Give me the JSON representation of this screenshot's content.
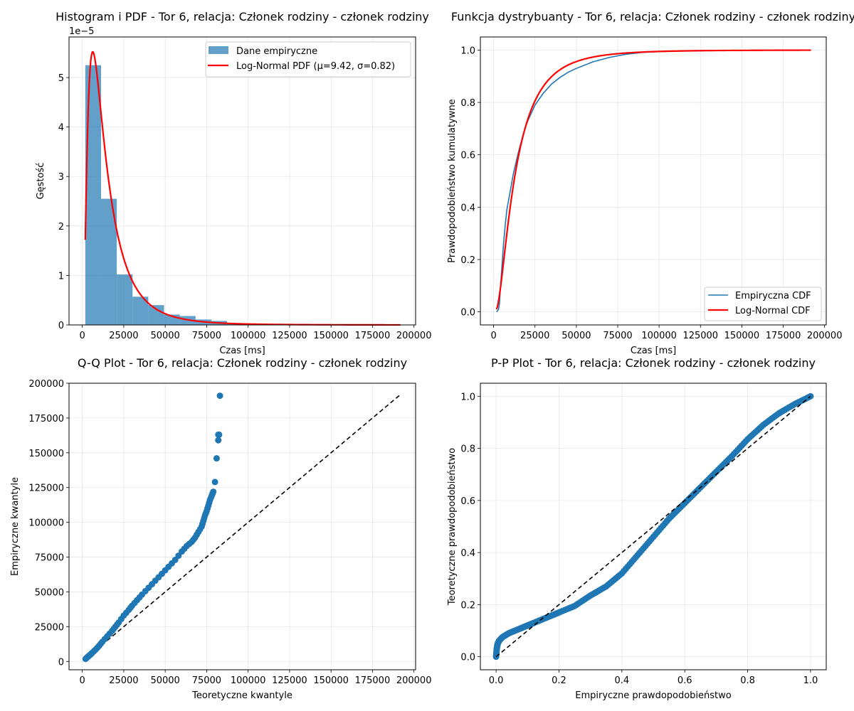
{
  "chart_data": [
    {
      "type": "bar",
      "subtype": "histogram_with_pdf",
      "title": "Histogram i PDF - Tor 6, relacja: Członek rodziny - członek rodziny",
      "xlabel": "Czas [ms]",
      "ylabel": "Gęstość",
      "y_offset_text": "1e−5",
      "xlim": [
        -8000,
        201000
      ],
      "ylim": [
        0,
        5.82
      ],
      "grid": true,
      "legend_position": "upper right",
      "xticks": [
        0,
        25000,
        50000,
        75000,
        100000,
        125000,
        150000,
        175000,
        200000
      ],
      "xtick_labels": [
        "0",
        "25000",
        "50000",
        "75000",
        "100000",
        "125000",
        "150000",
        "175000",
        "200000"
      ],
      "yticks": [
        0,
        1,
        2,
        3,
        4,
        5
      ],
      "ytick_labels": [
        "0",
        "1",
        "2",
        "3",
        "4",
        "5"
      ],
      "bar_color": "#1f77b4",
      "bar_alpha": 0.7,
      "histogram": {
        "name": "Dane empiryczne",
        "bin_edges": [
          1800,
          11300,
          20800,
          30300,
          39800,
          49300,
          58800,
          68300,
          77800,
          87300,
          96800,
          106300,
          115800,
          125300,
          134800,
          144300,
          153800,
          163300,
          172800,
          182300,
          191800
        ],
        "values": [
          5.25,
          2.55,
          1.02,
          0.57,
          0.4,
          0.21,
          0.18,
          0.11,
          0.08,
          0.03,
          0.02,
          0.015,
          0.01,
          0.008,
          0.004,
          0.004,
          0.003,
          0.002,
          0.001,
          0.002
        ]
      },
      "pdf_line": {
        "name": "Log-Normal PDF (μ=9.42, σ=0.82)",
        "color": "#ff0000",
        "mu": 9.42,
        "sigma": 0.82,
        "x_range": [
          1800,
          191800
        ]
      }
    },
    {
      "type": "line",
      "title": "Funkcja dystrybuanty - Tor 6, relacja: Członek rodziny - członek rodziny",
      "xlabel": "Czas [ms]",
      "ylabel": "Prawdopodobieństwo kumulatywne",
      "xlim": [
        -8000,
        201000
      ],
      "ylim": [
        -0.05,
        1.05
      ],
      "grid": true,
      "legend_position": "lower right",
      "xticks": [
        0,
        25000,
        50000,
        75000,
        100000,
        125000,
        150000,
        175000,
        200000
      ],
      "xtick_labels": [
        "0",
        "25000",
        "50000",
        "75000",
        "100000",
        "125000",
        "150000",
        "175000",
        "200000"
      ],
      "yticks": [
        0.0,
        0.2,
        0.4,
        0.6,
        0.8,
        1.0
      ],
      "ytick_labels": [
        "0.0",
        "0.2",
        "0.4",
        "0.6",
        "0.8",
        "1.0"
      ],
      "series": [
        {
          "name": "Empiryczna CDF",
          "color": "#1f77b4",
          "x": [
            1800,
            2500,
            3000,
            3500,
            4000,
            5000,
            6000,
            7000,
            8000,
            10000,
            12000,
            15000,
            18000,
            20000,
            25000,
            30000,
            35000,
            40000,
            45000,
            50000,
            60000,
            70000,
            80000,
            90000,
            100000,
            120000,
            150000,
            190000
          ],
          "y": [
            0.0,
            0.005,
            0.01,
            0.03,
            0.08,
            0.17,
            0.26,
            0.33,
            0.39,
            0.46,
            0.53,
            0.61,
            0.68,
            0.72,
            0.79,
            0.835,
            0.87,
            0.895,
            0.915,
            0.93,
            0.955,
            0.972,
            0.984,
            0.991,
            0.994,
            0.997,
            0.999,
            1.0
          ]
        },
        {
          "name": "Log-Normal CDF",
          "color": "#ff0000",
          "mu": 9.42,
          "sigma": 0.82,
          "x_range": [
            1800,
            191800
          ]
        }
      ]
    },
    {
      "type": "scatter",
      "title": "Q-Q Plot - Tor 6, relacja: Członek rodziny - członek rodziny",
      "xlabel": "Teoretyczne kwantyle",
      "ylabel": "Empiryczne kwantyle",
      "xlim": [
        -8000,
        201000
      ],
      "ylim": [
        -6000,
        200000
      ],
      "grid": true,
      "xticks": [
        0,
        25000,
        50000,
        75000,
        100000,
        125000,
        150000,
        175000,
        200000
      ],
      "xtick_labels": [
        "0",
        "25000",
        "50000",
        "75000",
        "100000",
        "125000",
        "150000",
        "175000",
        "200000"
      ],
      "yticks": [
        0,
        25000,
        50000,
        75000,
        100000,
        125000,
        150000,
        175000,
        200000
      ],
      "ytick_labels": [
        "0",
        "25000",
        "50000",
        "75000",
        "100000",
        "125000",
        "150000",
        "175000",
        "200000"
      ],
      "points": {
        "color": "#1f77b4",
        "x": [
          2000,
          3000,
          4000,
          5000,
          6000,
          8000,
          10000,
          12000,
          15000,
          18000,
          20000,
          22000,
          25000,
          28000,
          30000,
          33000,
          36000,
          40000,
          44000,
          48000,
          52000,
          56000,
          60000,
          63000,
          66000,
          68000,
          70000,
          72000,
          73000,
          74000,
          75000,
          76000,
          77000,
          78000,
          79000,
          80000,
          81000,
          82000,
          82000,
          82500,
          83000
        ],
        "y": [
          1800,
          3000,
          4000,
          5000,
          6200,
          8500,
          11000,
          14000,
          18000,
          22000,
          25000,
          28000,
          33000,
          37000,
          40000,
          44000,
          48000,
          53000,
          58000,
          63000,
          68000,
          73000,
          79000,
          83000,
          86000,
          89000,
          93000,
          97000,
          101000,
          105000,
          108000,
          112000,
          116000,
          119000,
          122000,
          129000,
          146000,
          159000,
          163000,
          163000,
          191000
        ]
      },
      "reference_line": {
        "style": "dashed",
        "color": "#000000",
        "x": [
          1800,
          191800
        ],
        "y": [
          1800,
          191800
        ]
      }
    },
    {
      "type": "scatter",
      "title": "P-P Plot - Tor 6, relacja: Członek rodziny - członek rodziny",
      "xlabel": "Empiryczne prawdopodobieństwo",
      "ylabel": "Teoretyczne prawdopodobieństwo",
      "xlim": [
        -0.05,
        1.05
      ],
      "ylim": [
        -0.05,
        1.05
      ],
      "grid": true,
      "xticks": [
        0.0,
        0.2,
        0.4,
        0.6,
        0.8,
        1.0
      ],
      "xtick_labels": [
        "0.0",
        "0.2",
        "0.4",
        "0.6",
        "0.8",
        "1.0"
      ],
      "yticks": [
        0.0,
        0.2,
        0.4,
        0.6,
        0.8,
        1.0
      ],
      "ytick_labels": [
        "0.0",
        "0.2",
        "0.4",
        "0.6",
        "0.8",
        "1.0"
      ],
      "points": {
        "color": "#1f77b4",
        "curve_x": [
          0.0,
          0.002,
          0.005,
          0.01,
          0.02,
          0.04,
          0.06,
          0.08,
          0.1,
          0.12,
          0.15,
          0.18,
          0.2,
          0.25,
          0.3,
          0.35,
          0.4,
          0.45,
          0.5,
          0.55,
          0.6,
          0.65,
          0.7,
          0.75,
          0.8,
          0.85,
          0.9,
          0.95,
          1.0
        ],
        "curve_y": [
          0.0,
          0.03,
          0.05,
          0.062,
          0.075,
          0.09,
          0.1,
          0.11,
          0.12,
          0.13,
          0.145,
          0.16,
          0.17,
          0.195,
          0.235,
          0.27,
          0.32,
          0.39,
          0.46,
          0.53,
          0.59,
          0.65,
          0.71,
          0.77,
          0.835,
          0.89,
          0.935,
          0.97,
          1.0
        ]
      },
      "reference_line": {
        "style": "dashed",
        "color": "#000000",
        "x": [
          0.0,
          1.0
        ],
        "y": [
          0.0,
          1.0
        ]
      }
    }
  ]
}
